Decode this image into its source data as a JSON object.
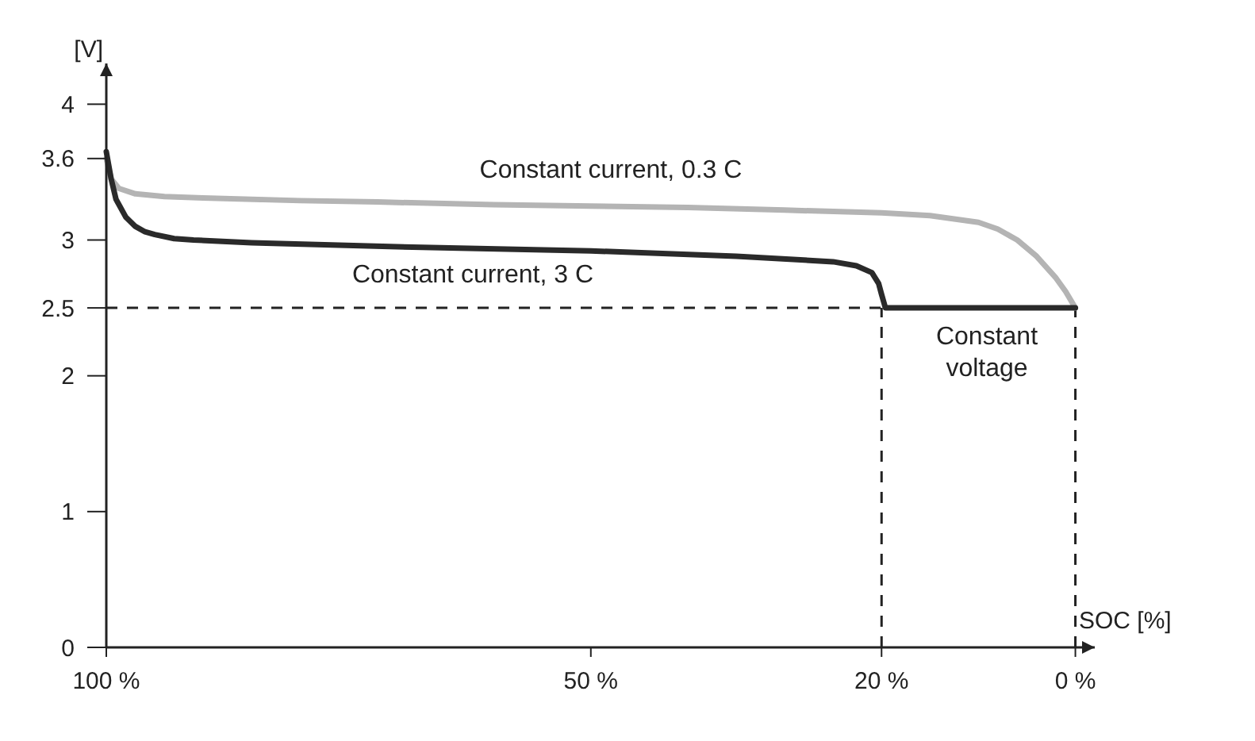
{
  "chart_data": {
    "type": "line",
    "xlabel": "SOC [%]",
    "ylabel": "[V]",
    "x": [
      100,
      99.5,
      98.7,
      97,
      94,
      90,
      80,
      72,
      60,
      50,
      40,
      30,
      20,
      15,
      10,
      8,
      6,
      4,
      2,
      1,
      0
    ],
    "series": [
      {
        "color": "#b4b4b4",
        "values": [
          3.6,
          3.45,
          3.38,
          3.34,
          3.32,
          3.31,
          3.29,
          3.28,
          3.26,
          3.25,
          3.24,
          3.22,
          3.2,
          3.18,
          3.13,
          3.08,
          3.0,
          2.88,
          2.72,
          2.62,
          2.5
        ]
      },
      {
        "color": "#2a2a2a",
        "x": [
          100,
          99.5,
          99,
          98,
          97,
          96,
          95,
          93,
          91,
          85,
          70,
          50,
          35,
          25,
          22.6,
          21,
          20.3,
          20,
          19.6,
          10,
          0
        ],
        "values": [
          3.65,
          3.45,
          3.3,
          3.17,
          3.1,
          3.06,
          3.04,
          3.01,
          3.0,
          2.98,
          2.95,
          2.92,
          2.88,
          2.84,
          2.81,
          2.76,
          2.68,
          2.6,
          2.5,
          2.5,
          2.5
        ]
      }
    ],
    "xlim": [
      100,
      -2
    ],
    "ylim": [
      0,
      4.3
    ],
    "xticks": [
      {
        "value": 100,
        "label": "100 %"
      },
      {
        "value": 50,
        "label": "50 %"
      },
      {
        "value": 20,
        "label": "20 %"
      },
      {
        "value": 0,
        "label": "0 %"
      }
    ],
    "yticks": [
      0,
      1,
      2,
      2.5,
      3,
      3.6,
      4
    ],
    "ref_lines": [
      {
        "axis": "y",
        "value": 2.5,
        "line_style": "dashed"
      },
      {
        "axis": "x",
        "value": 20,
        "line_style": "dashed"
      },
      {
        "axis": "x",
        "value": 0,
        "line_style": "dashed"
      }
    ],
    "annotations": [
      "Constant current, 0.3 C",
      "Constant current, 3 C",
      "Constant voltage"
    ],
    "marker": "none",
    "line_style": "solid"
  }
}
